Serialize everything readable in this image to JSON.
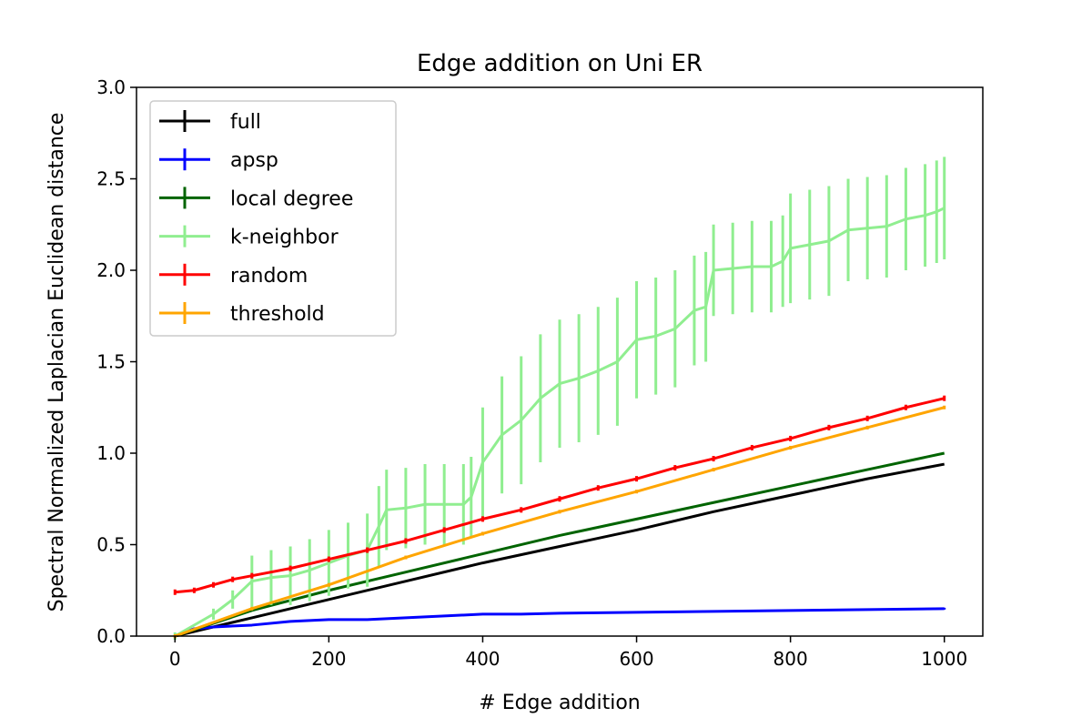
{
  "chart_data": {
    "type": "line",
    "title": "Edge addition on Uni ER",
    "xlabel": "# Edge addition",
    "ylabel": "Spectral Normalized Laplacian Euclidean distance",
    "xlim": [
      -50,
      1050
    ],
    "ylim": [
      0,
      3.0
    ],
    "xticks": [
      0,
      200,
      400,
      600,
      800,
      1000
    ],
    "xtick_labels": [
      "0",
      "200",
      "400",
      "600",
      "800",
      "1000"
    ],
    "yticks": [
      0.0,
      0.5,
      1.0,
      1.5,
      2.0,
      2.5,
      3.0
    ],
    "ytick_labels": [
      "0.0",
      "0.5",
      "1.0",
      "1.5",
      "2.0",
      "2.5",
      "3.0"
    ],
    "grid": false,
    "legend_position": "upper-left",
    "series": [
      {
        "name": "full",
        "color": "#000000",
        "x": [
          0,
          100,
          200,
          300,
          400,
          500,
          600,
          700,
          800,
          900,
          1000
        ],
        "values": [
          0.0,
          0.1,
          0.2,
          0.3,
          0.4,
          0.49,
          0.58,
          0.68,
          0.77,
          0.86,
          0.94
        ]
      },
      {
        "name": "apsp",
        "color": "#0000ff",
        "x": [
          0,
          25,
          50,
          100,
          150,
          200,
          250,
          300,
          350,
          400,
          450,
          500,
          600,
          700,
          800,
          900,
          1000
        ],
        "values": [
          0.0,
          0.04,
          0.05,
          0.06,
          0.08,
          0.09,
          0.09,
          0.1,
          0.11,
          0.12,
          0.12,
          0.125,
          0.13,
          0.135,
          0.14,
          0.145,
          0.15
        ],
        "errors": [
          0.005,
          0.005,
          0.005,
          0.005,
          0.005,
          0.005,
          0.005,
          0.005,
          0.005,
          0.005,
          0.005,
          0.005,
          0.005,
          0.005,
          0.005,
          0.005,
          0.005
        ]
      },
      {
        "name": "local degree",
        "color": "#006400",
        "x": [
          0,
          100,
          200,
          300,
          400,
          500,
          600,
          700,
          800,
          900,
          1000
        ],
        "values": [
          0.0,
          0.14,
          0.25,
          0.35,
          0.45,
          0.55,
          0.64,
          0.73,
          0.82,
          0.91,
          1.0
        ]
      },
      {
        "name": "k-neighbor",
        "color": "#90ee90",
        "x": [
          0,
          50,
          75,
          100,
          125,
          150,
          175,
          200,
          225,
          250,
          265,
          275,
          300,
          325,
          350,
          375,
          385,
          400,
          425,
          450,
          475,
          500,
          525,
          550,
          575,
          600,
          625,
          650,
          675,
          690,
          700,
          725,
          750,
          775,
          790,
          800,
          825,
          850,
          875,
          900,
          925,
          950,
          975,
          990,
          1000
        ],
        "values": [
          0.0,
          0.12,
          0.2,
          0.3,
          0.32,
          0.33,
          0.36,
          0.4,
          0.44,
          0.47,
          0.6,
          0.69,
          0.7,
          0.72,
          0.72,
          0.72,
          0.76,
          0.95,
          1.1,
          1.18,
          1.3,
          1.38,
          1.41,
          1.45,
          1.5,
          1.62,
          1.64,
          1.68,
          1.78,
          1.8,
          2.0,
          2.01,
          2.02,
          2.02,
          2.05,
          2.12,
          2.14,
          2.16,
          2.22,
          2.23,
          2.24,
          2.28,
          2.3,
          2.32,
          2.34
        ],
        "errors": [
          0.02,
          0.03,
          0.05,
          0.14,
          0.15,
          0.16,
          0.17,
          0.18,
          0.18,
          0.2,
          0.22,
          0.22,
          0.22,
          0.22,
          0.22,
          0.22,
          0.22,
          0.3,
          0.32,
          0.35,
          0.35,
          0.35,
          0.35,
          0.35,
          0.35,
          0.32,
          0.32,
          0.32,
          0.3,
          0.3,
          0.25,
          0.25,
          0.25,
          0.25,
          0.25,
          0.3,
          0.3,
          0.3,
          0.28,
          0.28,
          0.28,
          0.28,
          0.28,
          0.28,
          0.28
        ]
      },
      {
        "name": "random",
        "color": "#ff0000",
        "x": [
          0,
          25,
          50,
          75,
          100,
          150,
          200,
          250,
          300,
          350,
          400,
          450,
          500,
          550,
          600,
          650,
          700,
          750,
          800,
          850,
          900,
          950,
          1000
        ],
        "values": [
          0.24,
          0.25,
          0.28,
          0.31,
          0.33,
          0.37,
          0.42,
          0.47,
          0.52,
          0.58,
          0.64,
          0.69,
          0.75,
          0.81,
          0.86,
          0.92,
          0.97,
          1.03,
          1.08,
          1.14,
          1.19,
          1.25,
          1.3
        ],
        "errors": [
          0.015,
          0.015,
          0.015,
          0.015,
          0.015,
          0.015,
          0.015,
          0.015,
          0.015,
          0.015,
          0.015,
          0.015,
          0.015,
          0.015,
          0.015,
          0.015,
          0.015,
          0.015,
          0.015,
          0.015,
          0.015,
          0.015,
          0.015
        ]
      },
      {
        "name": "threshold",
        "color": "#ffa500",
        "x": [
          0,
          100,
          200,
          300,
          400,
          500,
          600,
          700,
          800,
          900,
          1000
        ],
        "values": [
          0.0,
          0.15,
          0.28,
          0.43,
          0.56,
          0.68,
          0.79,
          0.91,
          1.03,
          1.14,
          1.25
        ],
        "errors": [
          0.01,
          0.01,
          0.01,
          0.01,
          0.01,
          0.01,
          0.01,
          0.01,
          0.01,
          0.01,
          0.01
        ]
      }
    ]
  }
}
